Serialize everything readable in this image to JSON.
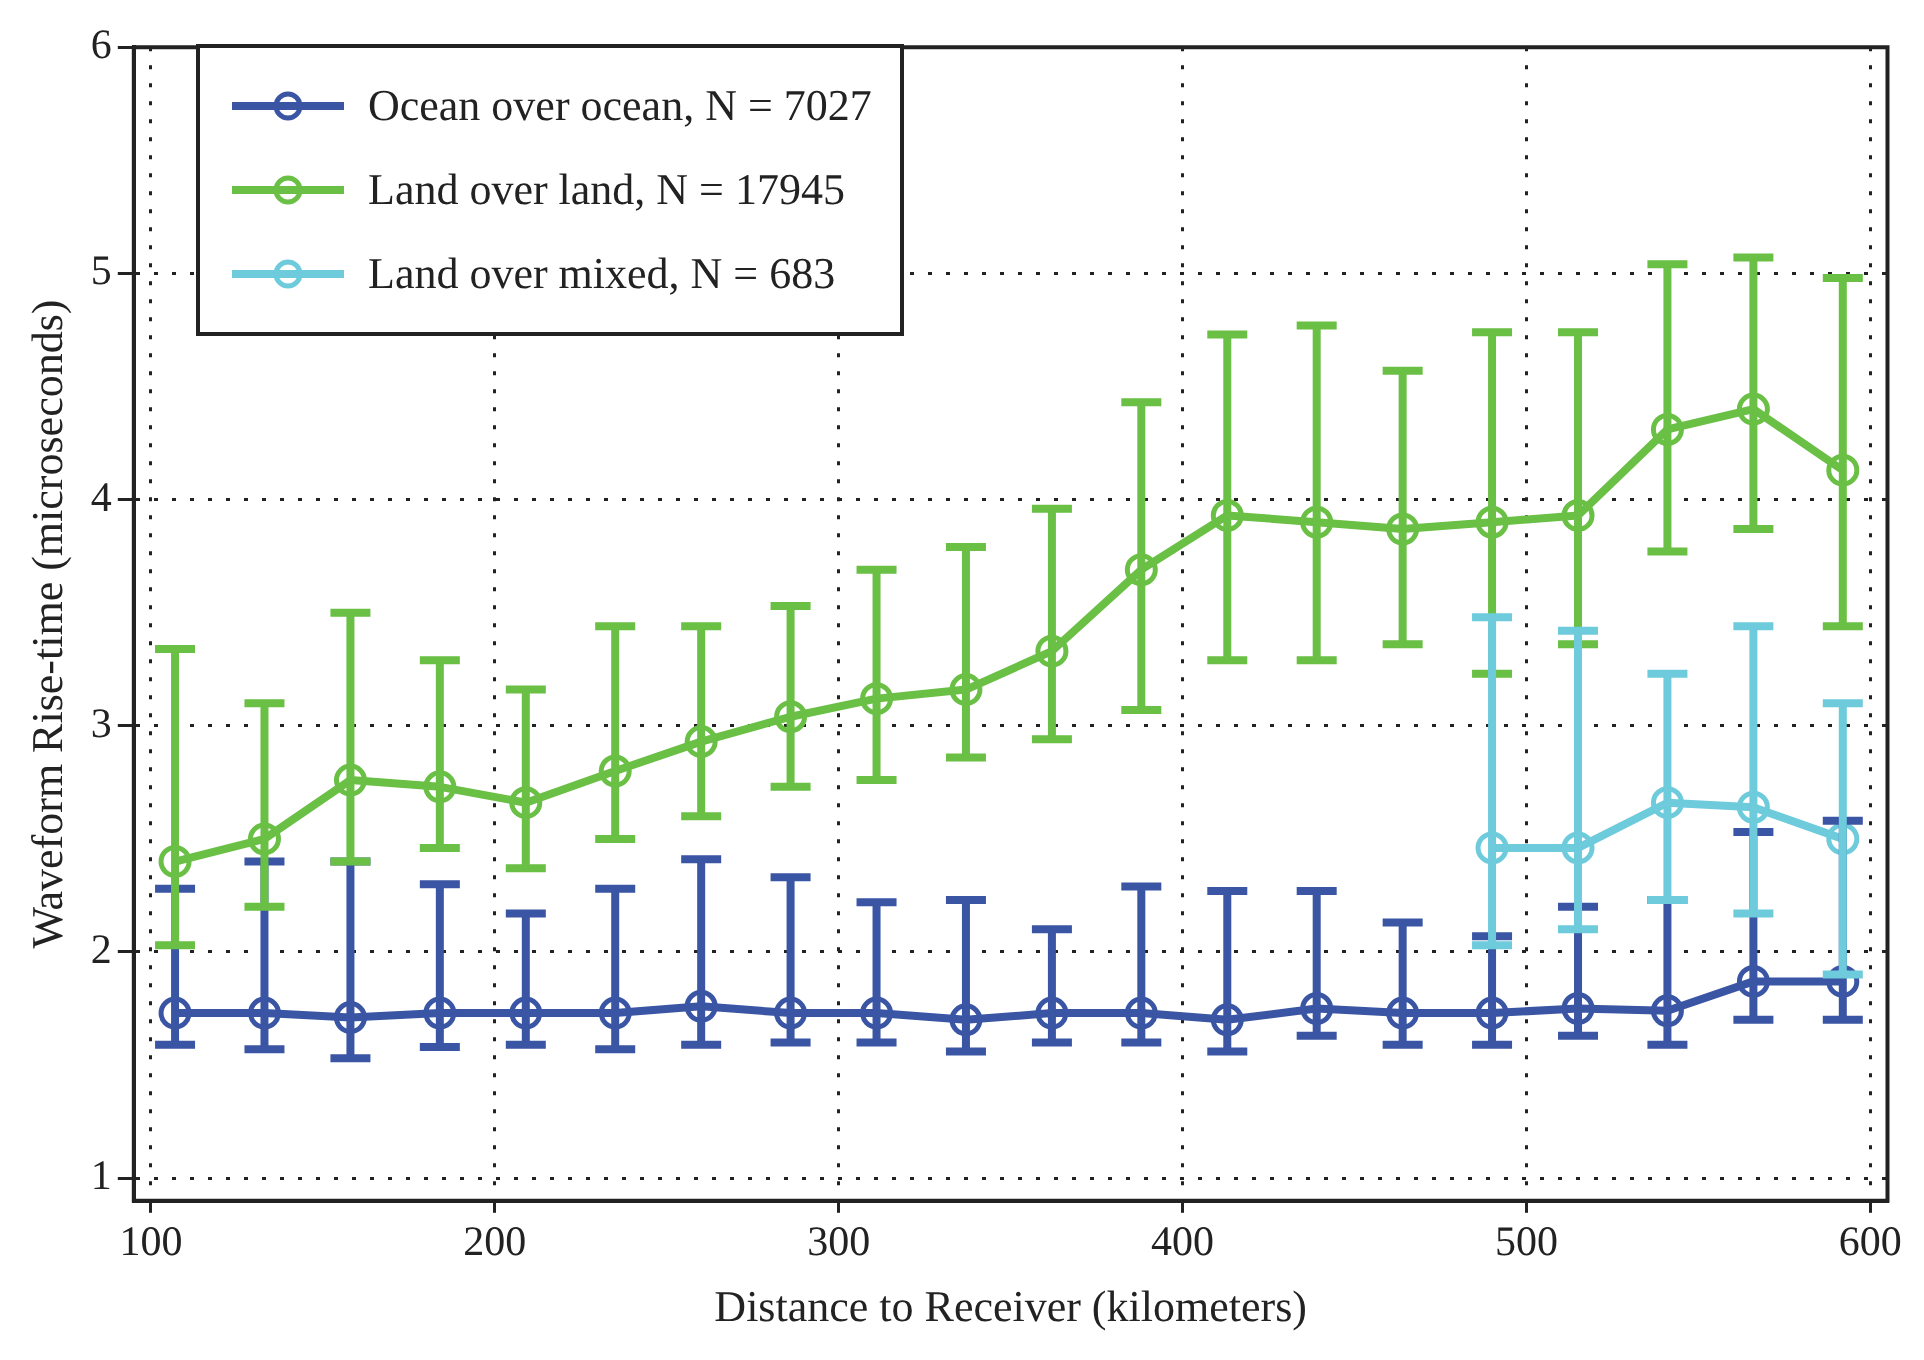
{
  "chart_data": {
    "type": "line",
    "xlabel": "Distance to Receiver (kilometers)",
    "ylabel": "Waveform Rise-time (microseconds)",
    "x": [
      107,
      133,
      158,
      184,
      209,
      235,
      260,
      286,
      311,
      337,
      362,
      388,
      413,
      439,
      464,
      490,
      515,
      541,
      566,
      592
    ],
    "xlim": [
      95,
      605
    ],
    "xticks": [
      100,
      200,
      300,
      400,
      500,
      600
    ],
    "ylim": [
      0.9,
      6
    ],
    "yticks": [
      1,
      2,
      3,
      4,
      5,
      6
    ],
    "grid": true,
    "legend": "top left",
    "marker": "circle",
    "line_style": "solid",
    "series": [
      {
        "name": "Ocean over ocean, N = 7027",
        "color": "#3a55a4",
        "values": [
          1.73,
          1.73,
          1.71,
          1.73,
          1.73,
          1.73,
          1.76,
          1.73,
          1.73,
          1.7,
          1.73,
          1.73,
          1.7,
          1.75,
          1.73,
          1.73,
          1.75,
          1.74,
          1.87,
          1.87
        ],
        "errors": [
          [
            1.59,
            2.28
          ],
          [
            1.57,
            2.4
          ],
          [
            1.53,
            2.4
          ],
          [
            1.58,
            2.3
          ],
          [
            1.59,
            2.17
          ],
          [
            1.57,
            2.28
          ],
          [
            1.59,
            2.41
          ],
          [
            1.6,
            2.33
          ],
          [
            1.6,
            2.22
          ],
          [
            1.56,
            2.23
          ],
          [
            1.6,
            2.1
          ],
          [
            1.6,
            2.29
          ],
          [
            1.56,
            2.27
          ],
          [
            1.63,
            2.27
          ],
          [
            1.59,
            2.13
          ],
          [
            1.59,
            2.07
          ],
          [
            1.63,
            2.2
          ],
          [
            1.59,
            2.23
          ],
          [
            1.7,
            2.53
          ],
          [
            1.7,
            2.58
          ]
        ]
      },
      {
        "name": "Land over land, N = 17945",
        "color": "#6abf45",
        "values": [
          2.4,
          2.5,
          2.76,
          2.73,
          2.66,
          2.8,
          2.93,
          3.04,
          3.12,
          3.16,
          3.33,
          3.69,
          3.93,
          3.9,
          3.87,
          3.9,
          3.93,
          4.31,
          4.4,
          4.13
        ],
        "errors": [
          [
            2.03,
            3.34
          ],
          [
            2.2,
            3.1
          ],
          [
            2.4,
            3.5
          ],
          [
            2.46,
            3.29
          ],
          [
            2.37,
            3.16
          ],
          [
            2.5,
            3.44
          ],
          [
            2.6,
            3.44
          ],
          [
            2.73,
            3.53
          ],
          [
            2.76,
            3.69
          ],
          [
            2.86,
            3.79
          ],
          [
            2.94,
            3.96
          ],
          [
            3.07,
            4.43
          ],
          [
            3.29,
            4.73
          ],
          [
            3.29,
            4.77
          ],
          [
            3.36,
            4.57
          ],
          [
            3.23,
            4.74
          ],
          [
            3.36,
            4.74
          ],
          [
            3.77,
            5.04
          ],
          [
            3.87,
            5.07
          ],
          [
            3.44,
            4.98
          ]
        ]
      },
      {
        "name": "Land over mixed, N = 683",
        "color": "#6dcbdb",
        "values": [
          null,
          null,
          null,
          null,
          null,
          null,
          null,
          null,
          null,
          null,
          null,
          null,
          null,
          null,
          null,
          2.46,
          2.46,
          2.66,
          2.64,
          2.5
        ],
        "errors": [
          null,
          null,
          null,
          null,
          null,
          null,
          null,
          null,
          null,
          null,
          null,
          null,
          null,
          null,
          null,
          [
            2.03,
            3.48
          ],
          [
            2.1,
            3.42
          ],
          [
            2.23,
            3.23
          ],
          [
            2.17,
            3.44
          ],
          [
            1.9,
            3.1
          ]
        ]
      }
    ]
  }
}
